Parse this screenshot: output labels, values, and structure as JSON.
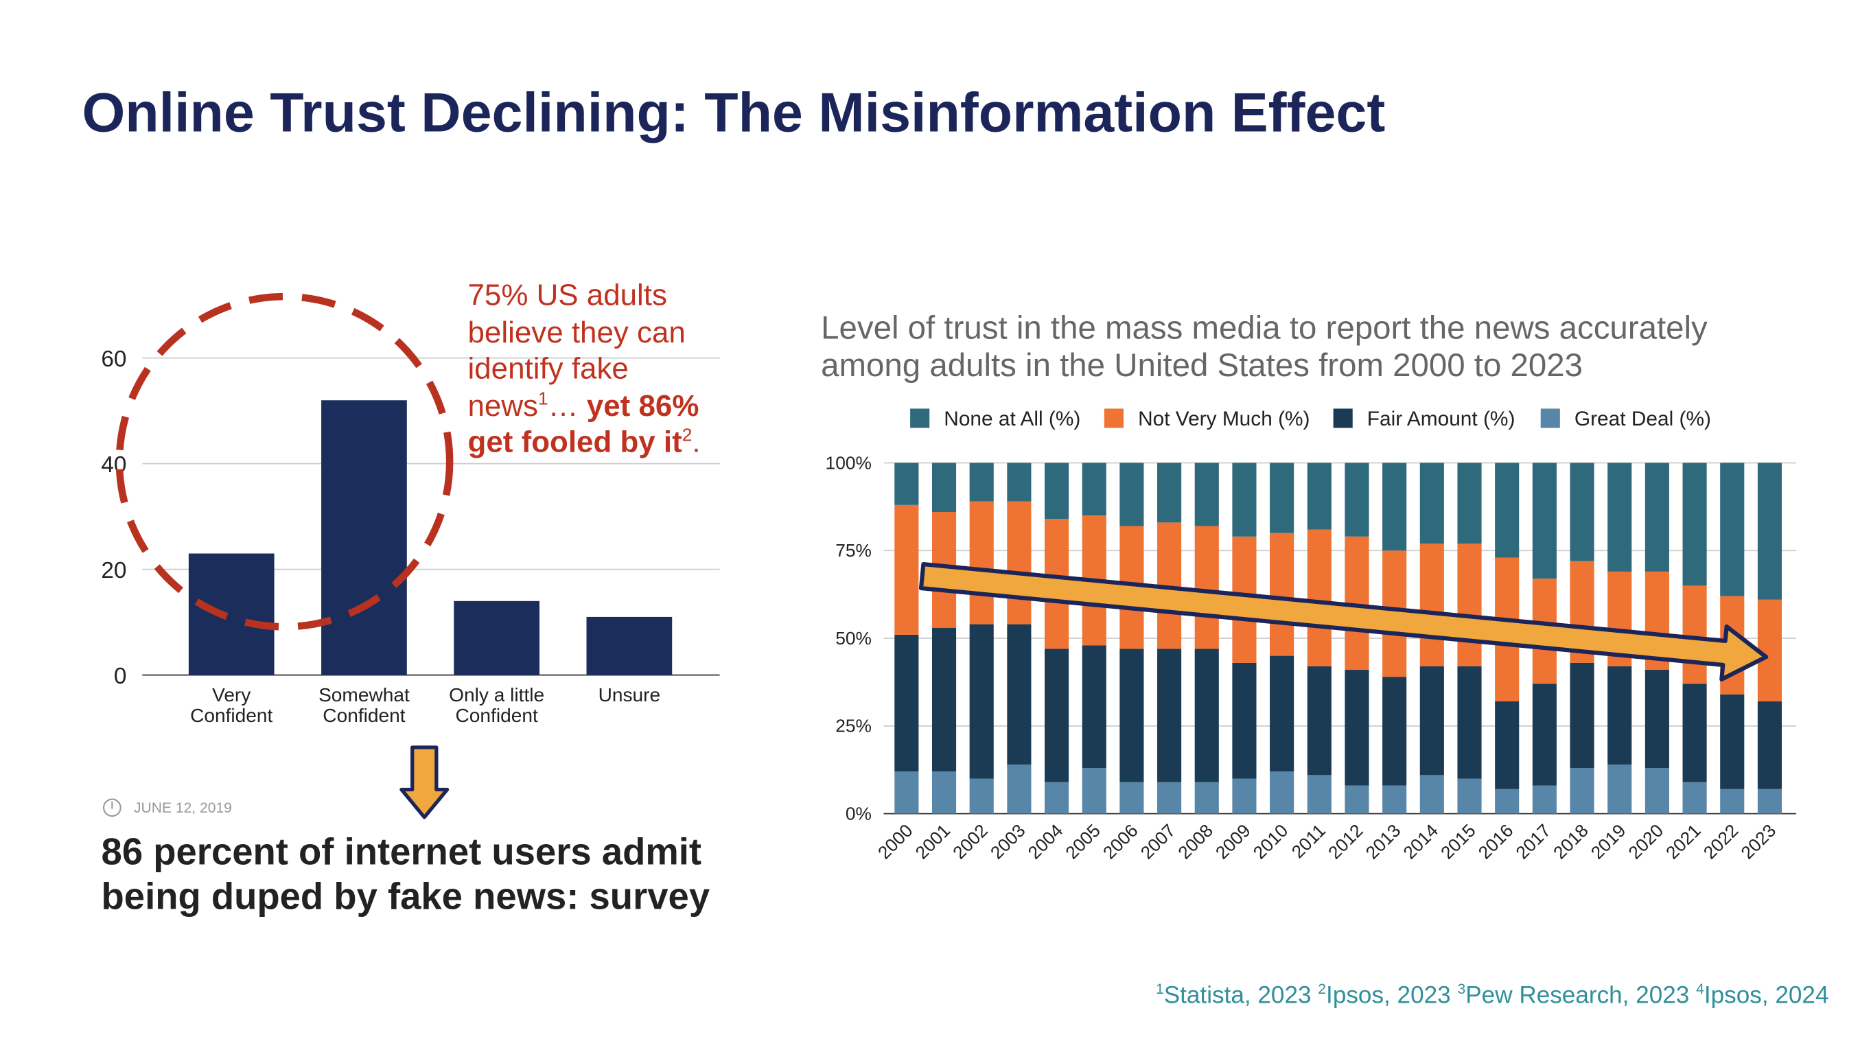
{
  "title": "Online Trust Declining: The Misinformation Effect",
  "annotation": {
    "text": "75% US adults believe they can identify fake news",
    "sup1": "1",
    "ellipsis": "…",
    "bold": "yet 86% get fooled by it",
    "sup2": "2",
    "end": "."
  },
  "news": {
    "date": "JUNE 12, 2019",
    "headline": "86 percent of internet users admit being duped by fake news: survey"
  },
  "footnotes": [
    {
      "sup": "1",
      "text": "Statista, 2023"
    },
    {
      "sup": "2",
      "text": "Ipsos, 2023"
    },
    {
      "sup": "3",
      "text": "Pew Research, 2023"
    },
    {
      "sup": "4",
      "text": "Ipsos, 2024"
    }
  ],
  "chart_data": [
    {
      "type": "bar",
      "categories": [
        "Very Confident",
        "Somewhat Confident",
        "Only a little Confident",
        "Unsure"
      ],
      "values": [
        23,
        52,
        14,
        11
      ],
      "color": "#1b2d5b",
      "ylim": [
        0,
        60
      ],
      "yticks": [
        0,
        20,
        40,
        60
      ],
      "grid": true
    },
    {
      "type": "stacked_bar",
      "title": "Level of trust in the mass media to report the news accurately among adults in the United States from 2000 to 2023",
      "categories": [
        "2000",
        "2001",
        "2002",
        "2003",
        "2004",
        "2005",
        "2006",
        "2007",
        "2008",
        "2009",
        "2010",
        "2011",
        "2012",
        "2013",
        "2014",
        "2015",
        "2016",
        "2017",
        "2018",
        "2019",
        "2020",
        "2021",
        "2022",
        "2023"
      ],
      "series": [
        {
          "name": "None at All (%)",
          "color": "#2f6a7c",
          "values": [
            12,
            14,
            11,
            11,
            16,
            15,
            18,
            17,
            18,
            21,
            20,
            19,
            21,
            25,
            23,
            23,
            27,
            33,
            28,
            31,
            31,
            35,
            38,
            39
          ]
        },
        {
          "name": "Not Very Much (%)",
          "color": "#ef7333",
          "values": [
            37,
            33,
            35,
            35,
            37,
            37,
            35,
            36,
            35,
            36,
            35,
            39,
            38,
            36,
            35,
            35,
            41,
            30,
            29,
            27,
            28,
            28,
            28,
            29
          ]
        },
        {
          "name": "Fair Amount (%)",
          "color": "#1b3b54",
          "values": [
            39,
            41,
            44,
            40,
            38,
            35,
            38,
            38,
            38,
            33,
            33,
            31,
            33,
            31,
            31,
            32,
            25,
            29,
            30,
            28,
            28,
            28,
            27,
            25
          ]
        },
        {
          "name": "Great Deal (%)",
          "color": "#5886a8",
          "values": [
            12,
            12,
            10,
            14,
            9,
            13,
            9,
            9,
            9,
            10,
            12,
            11,
            8,
            8,
            11,
            10,
            7,
            8,
            13,
            14,
            13,
            9,
            7,
            7
          ]
        }
      ],
      "ylim": [
        0,
        100
      ],
      "yticks": [
        {
          "value": 0,
          "label": "0%"
        },
        {
          "value": 25,
          "label": "25%"
        },
        {
          "value": 50,
          "label": "50%"
        },
        {
          "value": 75,
          "label": "75%"
        },
        {
          "value": 100,
          "label": "100%"
        }
      ],
      "grid": true,
      "legend": "top"
    }
  ]
}
